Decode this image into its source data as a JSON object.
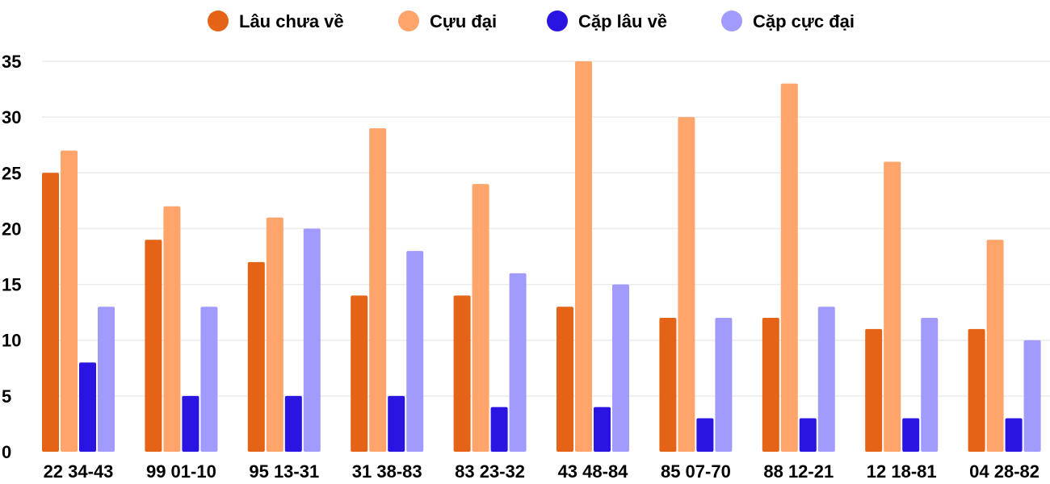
{
  "chart_data": {
    "type": "bar",
    "categories": [
      "22 34-43",
      "99 01-10",
      "95 13-31",
      "31 38-83",
      "83 23-32",
      "43 48-84",
      "85 07-70",
      "88 12-21",
      "12 18-81",
      "04 28-82"
    ],
    "series": [
      {
        "name": "Lâu chưa về",
        "color": "#E46317",
        "values": [
          25,
          19,
          17,
          14,
          14,
          13,
          12,
          12,
          11,
          11
        ]
      },
      {
        "name": "Cựu đại",
        "color": "#FFA56C",
        "values": [
          27,
          22,
          21,
          29,
          24,
          35,
          30,
          33,
          26,
          19
        ]
      },
      {
        "name": "Cặp lâu về",
        "color": "#2A14E2",
        "values": [
          8,
          5,
          5,
          5,
          4,
          4,
          3,
          3,
          3,
          3
        ]
      },
      {
        "name": "Cặp cực đại",
        "color": "#A29BFE",
        "values": [
          13,
          13,
          20,
          18,
          16,
          15,
          12,
          13,
          12,
          10
        ]
      }
    ],
    "yticks": [
      0,
      5,
      10,
      15,
      20,
      25,
      30,
      35
    ],
    "ylim": [
      0,
      35
    ],
    "grid": true,
    "legend": "top-center"
  }
}
